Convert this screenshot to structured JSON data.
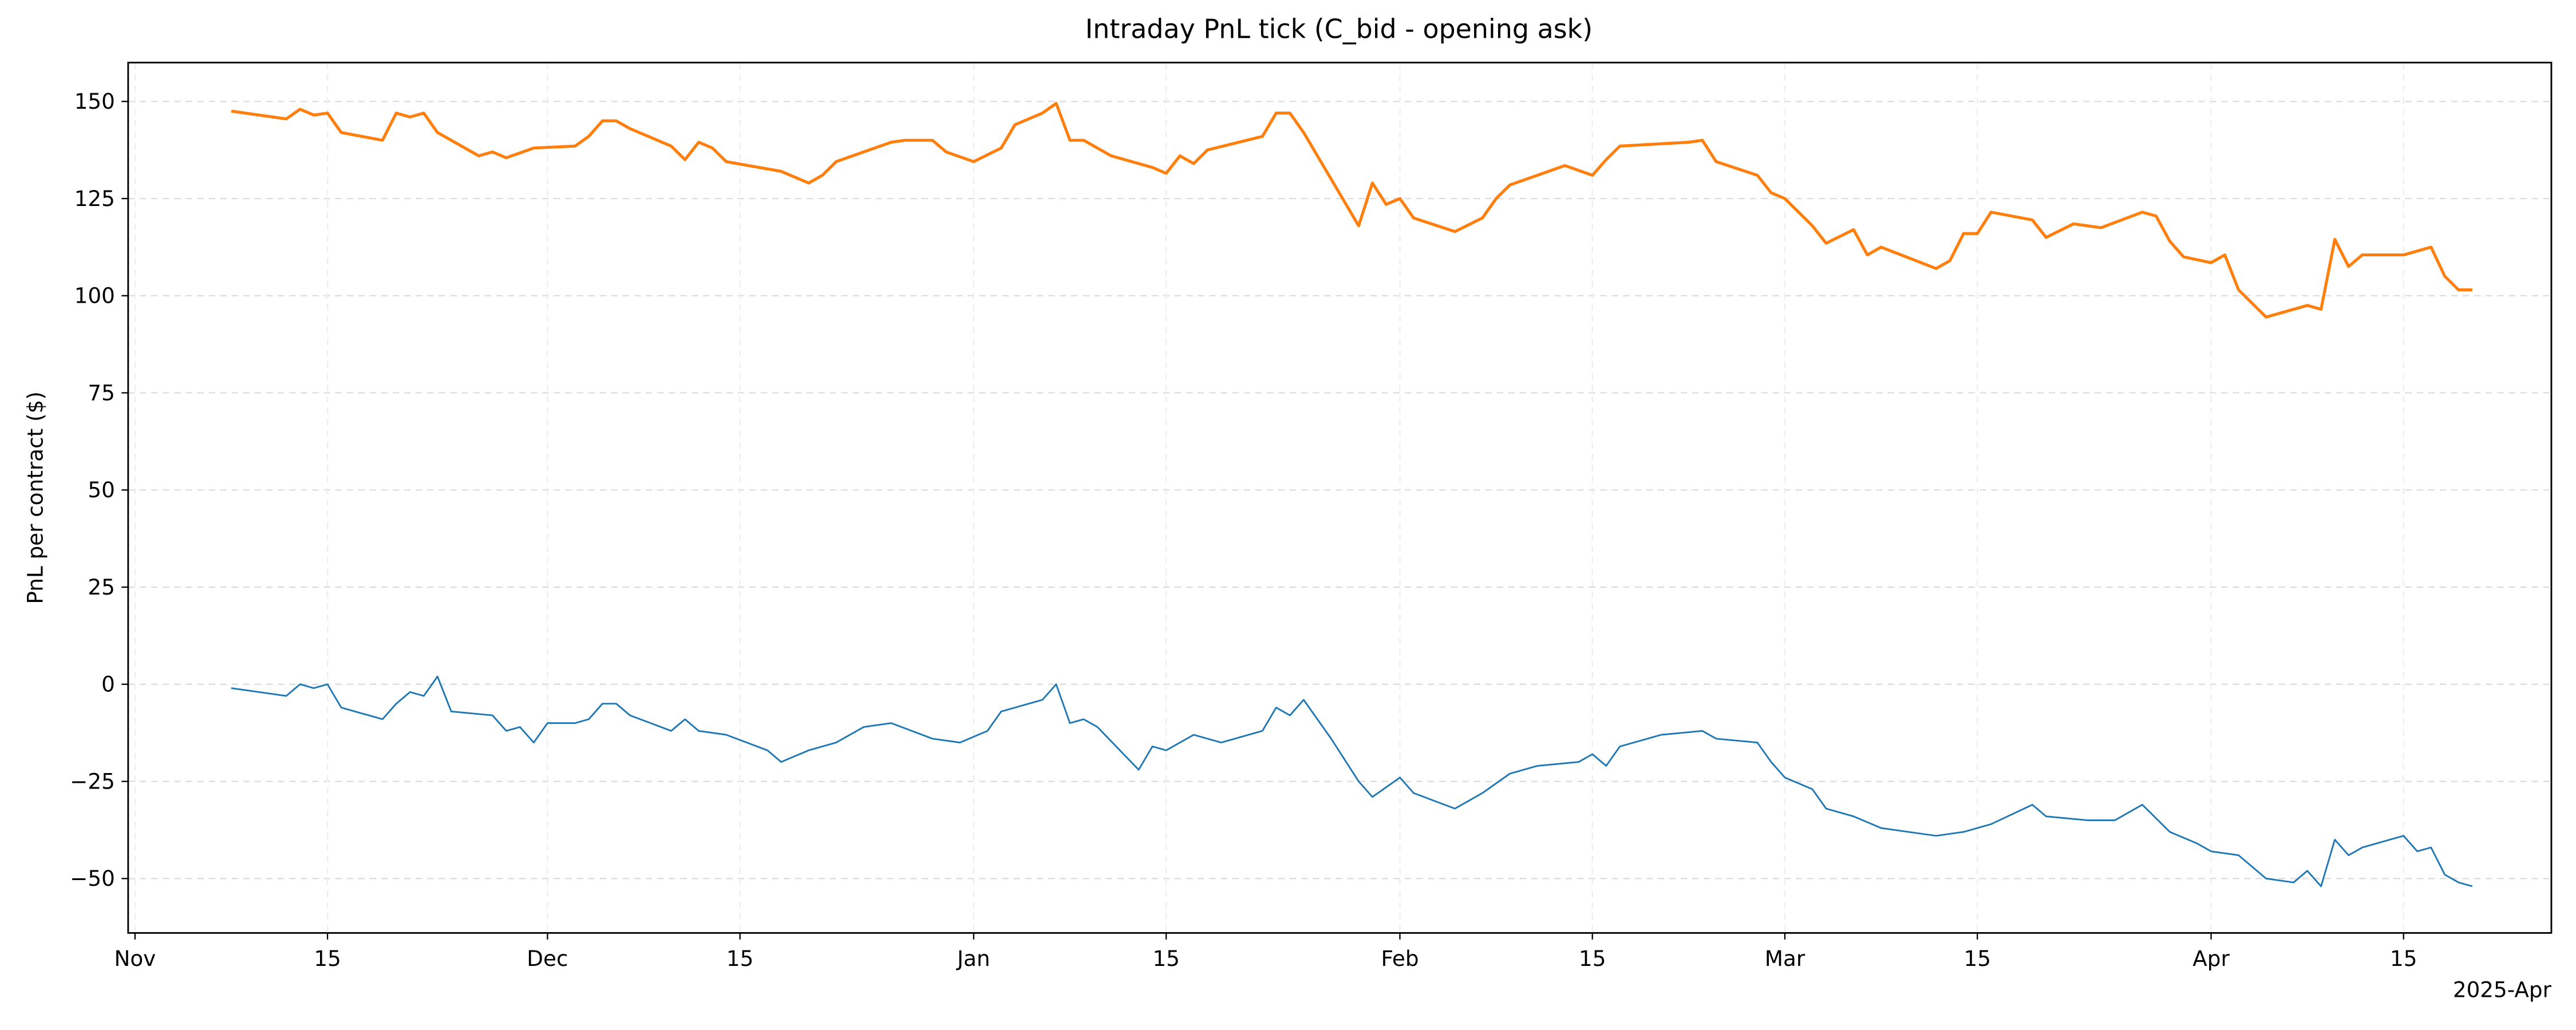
{
  "chart_data": {
    "type": "line",
    "title": "Intraday PnL tick (C_bid - opening ask)",
    "ylabel": "PnL per contract ($)",
    "x_offset_label": "2025-Apr",
    "grid": true,
    "xlim": [
      "2024-10-31T12:00",
      "2025-04-25T18:00"
    ],
    "ylim": [
      -64,
      160
    ],
    "xticks": [
      {
        "value": "2024-11-01",
        "label": "Nov"
      },
      {
        "value": "2024-11-15",
        "label": "15"
      },
      {
        "value": "2024-12-01",
        "label": "Dec"
      },
      {
        "value": "2024-12-15",
        "label": "15"
      },
      {
        "value": "2025-01-01",
        "label": "Jan"
      },
      {
        "value": "2025-01-15",
        "label": "15"
      },
      {
        "value": "2025-02-01",
        "label": "Feb"
      },
      {
        "value": "2025-02-15",
        "label": "15"
      },
      {
        "value": "2025-03-01",
        "label": "Mar"
      },
      {
        "value": "2025-03-15",
        "label": "15"
      },
      {
        "value": "2025-04-01",
        "label": "Apr"
      },
      {
        "value": "2025-04-15",
        "label": "15"
      }
    ],
    "yticks": [
      {
        "value": -50,
        "label": "−50"
      },
      {
        "value": -25,
        "label": "−25"
      },
      0,
      25,
      50,
      75,
      100,
      125,
      150
    ],
    "series": [
      {
        "color": "#1f77b4",
        "x": [
          "2024-11-08",
          "2024-11-12",
          "2024-11-13",
          "2024-11-14",
          "2024-11-15",
          "2024-11-16",
          "2024-11-19",
          "2024-11-20",
          "2024-11-21",
          "2024-11-22",
          "2024-11-23",
          "2024-11-24",
          "2024-11-27",
          "2024-11-28",
          "2024-11-29",
          "2024-11-30",
          "2024-12-01",
          "2024-12-03",
          "2024-12-04",
          "2024-12-05",
          "2024-12-06",
          "2024-12-07",
          "2024-12-10",
          "2024-12-11",
          "2024-12-12",
          "2024-12-14",
          "2024-12-17",
          "2024-12-18",
          "2024-12-20",
          "2024-12-22",
          "2024-12-24",
          "2024-12-26",
          "2024-12-29",
          "2024-12-31",
          "2025-01-02",
          "2025-01-03",
          "2025-01-06",
          "2025-01-07",
          "2025-01-08",
          "2025-01-09",
          "2025-01-10",
          "2025-01-13",
          "2025-01-14",
          "2025-01-15",
          "2025-01-17",
          "2025-01-19",
          "2025-01-22",
          "2025-01-23",
          "2025-01-24",
          "2025-01-25",
          "2025-01-27",
          "2025-01-29",
          "2025-01-30",
          "2025-02-01",
          "2025-02-02",
          "2025-02-05",
          "2025-02-07",
          "2025-02-09",
          "2025-02-11",
          "2025-02-14",
          "2025-02-15",
          "2025-02-16",
          "2025-02-17",
          "2025-02-20",
          "2025-02-23",
          "2025-02-24",
          "2025-02-27",
          "2025-02-28",
          "2025-03-01",
          "2025-03-03",
          "2025-03-04",
          "2025-03-06",
          "2025-03-08",
          "2025-03-12",
          "2025-03-14",
          "2025-03-16",
          "2025-03-19",
          "2025-03-20",
          "2025-03-23",
          "2025-03-25",
          "2025-03-27",
          "2025-03-29",
          "2025-03-31",
          "2025-04-01",
          "2025-04-03",
          "2025-04-05",
          "2025-04-07",
          "2025-04-08",
          "2025-04-09",
          "2025-04-10",
          "2025-04-11",
          "2025-04-12",
          "2025-04-15",
          "2025-04-16",
          "2025-04-17",
          "2025-04-18",
          "2025-04-19",
          "2025-04-20"
        ],
        "values": [
          -1,
          -3,
          0,
          -1,
          0,
          -6,
          -9,
          -5,
          -2,
          -3,
          2,
          -7,
          -8,
          -12,
          -11,
          -15,
          -10,
          -10,
          -9,
          -5,
          -5,
          -8,
          -12,
          -9,
          -12,
          -13,
          -17,
          -20,
          -17,
          -15,
          -11,
          -10,
          -14,
          -15,
          -12,
          -7,
          -4,
          0,
          -10,
          -9,
          -11,
          -22,
          -16,
          -17,
          -13,
          -15,
          -12,
          -6,
          -8,
          -4,
          -14,
          -25,
          -29,
          -24,
          -28,
          -32,
          -28,
          -23,
          -21,
          -20,
          -18,
          -21,
          -16,
          -13,
          -12,
          -14,
          -15,
          -20,
          -24,
          -27,
          -32,
          -34,
          -37,
          -39,
          -38,
          -36,
          -31,
          -34,
          -35,
          -35,
          -31,
          -38,
          -41,
          -43,
          -44,
          -50,
          -51,
          -48,
          -52,
          -40,
          -44,
          -42,
          -39,
          -43,
          -42,
          -49,
          -51,
          -52
        ]
      },
      {
        "color": "#ff7f0e",
        "x": [
          "2024-11-08",
          "2024-11-12",
          "2024-11-13",
          "2024-11-14",
          "2024-11-15",
          "2024-11-16",
          "2024-11-19",
          "2024-11-20",
          "2024-11-21",
          "2024-11-22",
          "2024-11-23",
          "2024-11-26",
          "2024-11-27",
          "2024-11-28",
          "2024-11-30",
          "2024-12-03",
          "2024-12-04",
          "2024-12-05",
          "2024-12-06",
          "2024-12-07",
          "2024-12-10",
          "2024-12-11",
          "2024-12-12",
          "2024-12-13",
          "2024-12-14",
          "2024-12-18",
          "2024-12-20",
          "2024-12-21",
          "2024-12-22",
          "2024-12-26",
          "2024-12-27",
          "2024-12-29",
          "2024-12-30",
          "2025-01-01",
          "2025-01-03",
          "2025-01-04",
          "2025-01-06",
          "2025-01-07",
          "2025-01-08",
          "2025-01-09",
          "2025-01-11",
          "2025-01-14",
          "2025-01-15",
          "2025-01-16",
          "2025-01-17",
          "2025-01-18",
          "2025-01-22",
          "2025-01-23",
          "2025-01-24",
          "2025-01-25",
          "2025-01-27",
          "2025-01-29",
          "2025-01-30",
          "2025-01-31",
          "2025-02-01",
          "2025-02-02",
          "2025-02-05",
          "2025-02-07",
          "2025-02-08",
          "2025-02-09",
          "2025-02-11",
          "2025-02-13",
          "2025-02-15",
          "2025-02-16",
          "2025-02-17",
          "2025-02-22",
          "2025-02-23",
          "2025-02-24",
          "2025-02-27",
          "2025-02-28",
          "2025-03-01",
          "2025-03-03",
          "2025-03-04",
          "2025-03-06",
          "2025-03-07",
          "2025-03-08",
          "2025-03-12",
          "2025-03-13",
          "2025-03-14",
          "2025-03-15",
          "2025-03-16",
          "2025-03-19",
          "2025-03-20",
          "2025-03-22",
          "2025-03-24",
          "2025-03-27",
          "2025-03-28",
          "2025-03-29",
          "2025-03-30",
          "2025-04-01",
          "2025-04-02",
          "2025-04-03",
          "2025-04-05",
          "2025-04-08",
          "2025-04-09",
          "2025-04-10",
          "2025-04-11",
          "2025-04-12",
          "2025-04-15",
          "2025-04-17",
          "2025-04-18",
          "2025-04-19",
          "2025-04-20"
        ],
        "values": [
          147.5,
          145.5,
          148,
          146.5,
          147,
          142,
          140,
          147,
          146,
          147,
          142,
          136,
          137,
          135.5,
          138,
          138.5,
          141,
          145,
          145,
          143,
          138.5,
          135,
          139.5,
          138,
          134.5,
          132,
          129,
          131,
          134.5,
          139.5,
          140,
          140,
          137,
          134.5,
          138,
          144,
          147,
          149.5,
          140,
          140,
          136,
          133,
          131.5,
          136,
          134,
          137.5,
          141,
          147,
          147,
          142,
          130,
          118,
          129,
          123.5,
          125,
          120,
          116.5,
          120,
          125,
          128.5,
          131,
          133.5,
          131,
          135,
          138.5,
          139.5,
          140,
          134.5,
          131,
          126.5,
          125,
          118,
          113.5,
          117,
          110.5,
          112.5,
          107,
          109,
          116,
          116,
          121.5,
          119.5,
          115,
          118.5,
          117.5,
          121.5,
          120.5,
          114,
          110,
          108.5,
          110.5,
          101.5,
          94.5,
          97.5,
          96.5,
          114.5,
          107.5,
          110.5,
          110.5,
          112.5,
          105,
          101.5,
          101.5
        ]
      }
    ]
  }
}
